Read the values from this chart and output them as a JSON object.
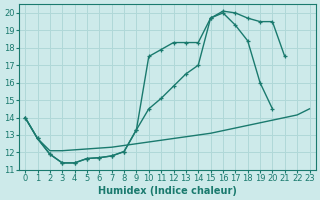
{
  "xlabel": "Humidex (Indice chaleur)",
  "bg_color": "#cdeaea",
  "grid_color": "#b0d8d8",
  "line_color": "#1a7a6e",
  "xlim": [
    -0.5,
    23.5
  ],
  "ylim": [
    11,
    20.5
  ],
  "xticks": [
    0,
    1,
    2,
    3,
    4,
    5,
    6,
    7,
    8,
    9,
    10,
    11,
    12,
    13,
    14,
    15,
    16,
    17,
    18,
    19,
    20,
    21,
    22,
    23
  ],
  "yticks": [
    11,
    12,
    13,
    14,
    15,
    16,
    17,
    18,
    19,
    20
  ],
  "line1_x": [
    0,
    1,
    2,
    3,
    4,
    5,
    6,
    7,
    8,
    9,
    10,
    11,
    12,
    13,
    14,
    15,
    16,
    17,
    18,
    19,
    20,
    21
  ],
  "line1_y": [
    14.0,
    12.8,
    11.9,
    11.4,
    11.4,
    11.65,
    11.7,
    11.8,
    12.05,
    13.3,
    17.5,
    17.9,
    18.3,
    18.3,
    18.3,
    19.7,
    20.1,
    20.0,
    19.7,
    19.5,
    19.5,
    17.5
  ],
  "line2_x": [
    0,
    1,
    2,
    3,
    4,
    5,
    6,
    7,
    8,
    9,
    10,
    11,
    12,
    13,
    14,
    15,
    16,
    17,
    18,
    19,
    20,
    21,
    22,
    23
  ],
  "line2_y": [
    14.0,
    12.8,
    11.9,
    11.4,
    11.4,
    11.65,
    11.7,
    11.8,
    12.05,
    13.3,
    14.5,
    15.1,
    15.8,
    16.5,
    17.0,
    19.7,
    20.0,
    19.3,
    18.4,
    16.0,
    14.5,
    null,
    null,
    null
  ],
  "line3_x": [
    0,
    1,
    2,
    3,
    4,
    5,
    6,
    7,
    8,
    9,
    10,
    11,
    12,
    13,
    14,
    15,
    16,
    17,
    18,
    19,
    20,
    21,
    22,
    23
  ],
  "line3_y": [
    14.0,
    12.8,
    12.1,
    12.1,
    12.15,
    12.2,
    12.25,
    12.3,
    12.4,
    12.5,
    12.6,
    12.7,
    12.8,
    12.9,
    13.0,
    13.1,
    13.25,
    13.4,
    13.55,
    13.7,
    13.85,
    14.0,
    14.15,
    14.5
  ],
  "line_width": 1.0,
  "xlabel_fontsize": 7,
  "tick_fontsize": 6
}
